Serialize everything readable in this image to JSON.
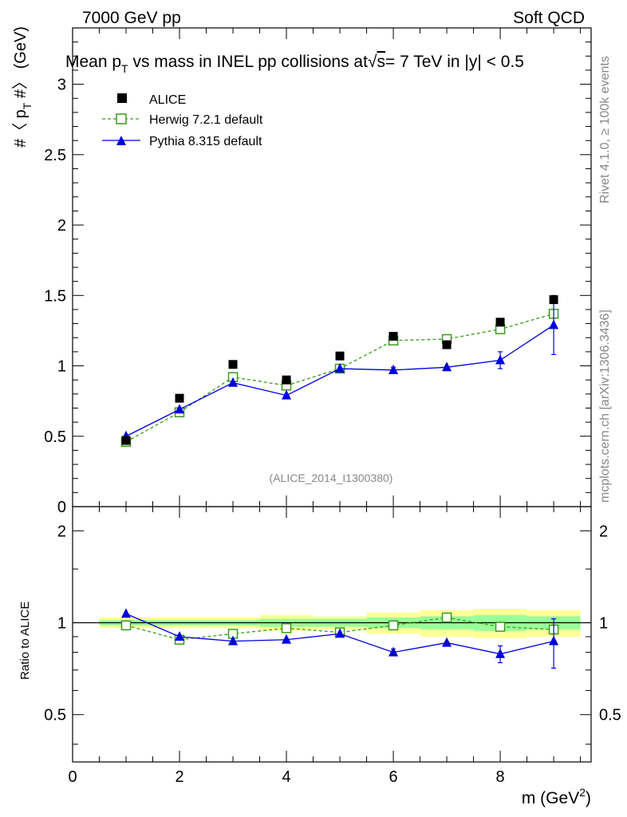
{
  "header": {
    "left": "7000 GeV pp",
    "right": "Soft QCD"
  },
  "side_labels": {
    "rivet": "Rivet 4.1.0, ≥ 100k events",
    "mcplots": "mcplots.cern.ch [arXiv:1306.3436]"
  },
  "chart_data": {
    "type": "scatter",
    "title": {
      "pre": "Mean p",
      "sub": "T",
      "mid": " vs mass in INEL pp collisions at",
      "radical": "√",
      "radicand": "s",
      "post": "=  7 TeV in |y| < 0.5"
    },
    "ylabel_main": {
      "pre": "#〈 p",
      "sub": "T",
      "post": " #〉 (GeV)"
    },
    "ylabel_ratio": "Ratio to ALICE",
    "xlabel": {
      "pre": "m (GeV",
      "sup": "2",
      "post": ")"
    },
    "watermark": "(ALICE_2014_I1300380)",
    "x_ticks": [
      "0",
      "2",
      "4",
      "6",
      "8"
    ],
    "y_ticks_main": [
      "0",
      "0.5",
      "1",
      "1.5",
      "2",
      "2.5",
      "3"
    ],
    "y_ticks_ratio": [
      "0.5",
      "1",
      "2"
    ],
    "xlim": [
      0,
      9.7
    ],
    "ylim_main": [
      0,
      3.4
    ],
    "ylim_ratio": [
      0.35,
      2.4
    ],
    "bins": [
      [
        0.5,
        1.5
      ],
      [
        1.5,
        2.5
      ],
      [
        2.5,
        3.5
      ],
      [
        3.5,
        4.5
      ],
      [
        4.5,
        5.5
      ],
      [
        5.5,
        6.5
      ],
      [
        6.5,
        7.5
      ],
      [
        7.5,
        8.5
      ],
      [
        8.5,
        9.5
      ]
    ],
    "x": [
      1,
      2,
      3,
      4,
      5,
      6,
      7,
      8,
      9
    ],
    "series": [
      {
        "name": "ALICE",
        "marker": "square",
        "color": "#000000",
        "values": [
          0.47,
          0.77,
          1.01,
          0.9,
          1.07,
          1.21,
          1.15,
          1.31,
          1.47
        ]
      },
      {
        "name": "Herwig 7.2.1 default",
        "marker": "open-square",
        "line": "dashed",
        "color": "#3a9a1a",
        "values": [
          0.46,
          0.67,
          0.92,
          0.86,
          0.98,
          1.18,
          1.19,
          1.26,
          1.37
        ],
        "ratio": [
          0.98,
          0.88,
          0.92,
          0.96,
          0.93,
          0.98,
          1.04,
          0.97,
          0.95
        ]
      },
      {
        "name": "Pythia 8.315 default",
        "marker": "triangle",
        "line": "solid",
        "color": "#0000dd",
        "values": [
          0.5,
          0.69,
          0.88,
          0.79,
          0.98,
          0.97,
          0.99,
          1.04,
          1.29
        ],
        "errors": [
          0.01,
          0.01,
          0.01,
          0.01,
          0.01,
          0.02,
          0.01,
          0.06,
          0.21
        ],
        "ratio": [
          1.07,
          0.9,
          0.87,
          0.88,
          0.92,
          0.8,
          0.86,
          0.79,
          0.87
        ],
        "ratio_errors": [
          0.01,
          0.01,
          0.01,
          0.01,
          0.01,
          0.02,
          0.01,
          0.05,
          0.16
        ]
      }
    ],
    "bands": {
      "yellow": [
        0.04,
        0.04,
        0.04,
        0.06,
        0.05,
        0.08,
        0.1,
        0.11,
        0.1
      ],
      "green": [
        0.02,
        0.02,
        0.02,
        0.03,
        0.03,
        0.04,
        0.05,
        0.06,
        0.05
      ]
    },
    "colors": {
      "yellow_band": "#ffff99",
      "green_band": "#99ff99"
    }
  }
}
